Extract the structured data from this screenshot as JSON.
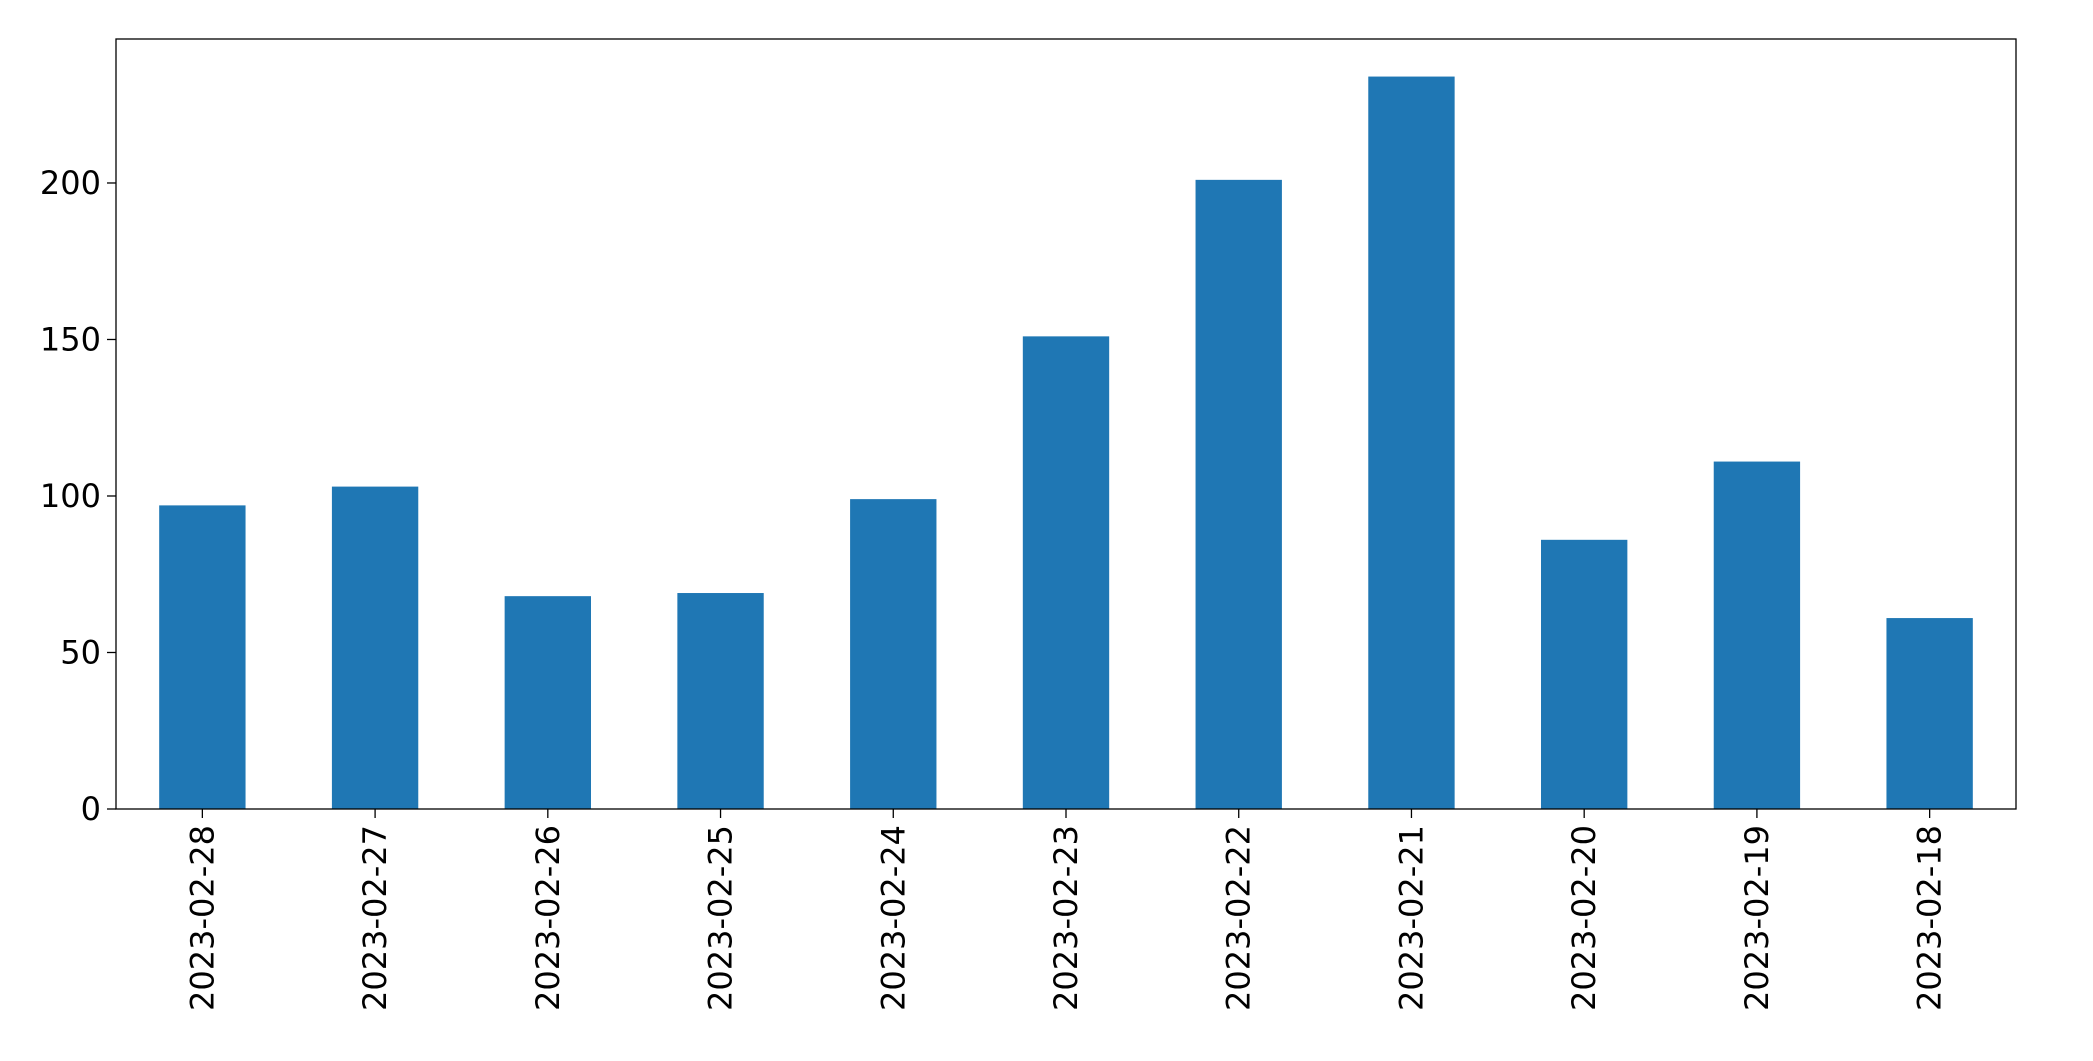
{
  "chart_data": {
    "type": "bar",
    "categories": [
      "2023-02-28",
      "2023-02-27",
      "2023-02-26",
      "2023-02-25",
      "2023-02-24",
      "2023-02-23",
      "2023-02-22",
      "2023-02-21",
      "2023-02-20",
      "2023-02-19",
      "2023-02-18"
    ],
    "values": [
      97,
      103,
      68,
      69,
      99,
      151,
      201,
      234,
      86,
      111,
      61
    ],
    "color": "#1f77b4",
    "ylim": [
      0,
      246
    ],
    "yticks": [
      0,
      50,
      100,
      150,
      200
    ],
    "grid": false
  }
}
